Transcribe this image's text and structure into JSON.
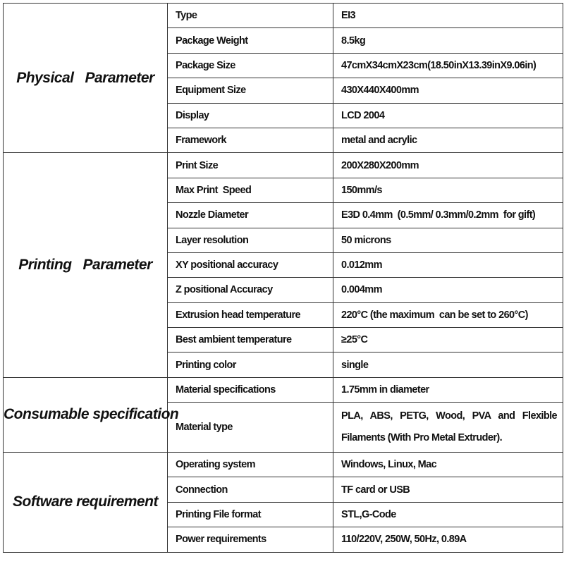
{
  "sections": [
    {
      "title": "Physical   Parameter",
      "rows": [
        {
          "label": "Type",
          "value": "EI3"
        },
        {
          "label": "Package Weight",
          "value": "8.5kg"
        },
        {
          "label": "Package Size",
          "value": "47cmX34cmX23cm(18.50inX13.39inX9.06in)"
        },
        {
          "label": "Equipment Size",
          "value": "430X440X400mm"
        },
        {
          "label": "Display",
          "value": "LCD 2004"
        },
        {
          "label": "Framework",
          "value": "metal and acrylic"
        }
      ]
    },
    {
      "title": "Printing   Parameter",
      "rows": [
        {
          "label": "Print Size",
          "value": "200X280X200mm"
        },
        {
          "label": "Max Print  Speed",
          "value": "150mm/s"
        },
        {
          "label": "Nozzle Diameter",
          "value": "E3D 0.4mm  (0.5mm/ 0.3mm/0.2mm  for gift)"
        },
        {
          "label": "Layer resolution",
          "value": "50 microns"
        },
        {
          "label": "XY positional accuracy",
          "value": "0.012mm"
        },
        {
          "label": "Z positional Accuracy",
          "value": "0.004mm"
        },
        {
          "label": "Extrusion head temperature",
          "value": "220°C (the maximum  can be set to 260°C)"
        },
        {
          "label": "Best ambient temperature",
          "value": "≥25°C"
        },
        {
          "label": "Printing color",
          "value": "single"
        }
      ]
    },
    {
      "title": "Consumable specification",
      "rows": [
        {
          "label": "Material specifications",
          "value": "1.75mm in diameter"
        },
        {
          "label": "Material type",
          "value": "PLA,  ABS,  PETG,  Wood,  PVA  and  Flexible Filaments (With Pro Metal Extruder)."
        }
      ]
    },
    {
      "title": "Software requirement",
      "rows": [
        {
          "label": "Operating system",
          "value": "Windows, Linux, Mac"
        },
        {
          "label": "Connection",
          "value": "TF card or USB"
        },
        {
          "label": "Printing File format",
          "value": "STL,G-Code"
        },
        {
          "label": "Power requirements",
          "value": "110/220V, 250W, 50Hz, 0.89A"
        }
      ]
    }
  ]
}
